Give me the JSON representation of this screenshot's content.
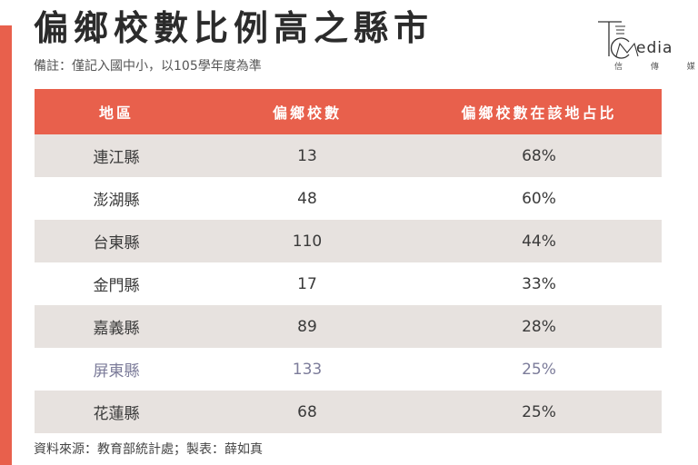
{
  "colors": {
    "accent": "#e8604c",
    "stripe": "#e7e2df",
    "text": "#333333"
  },
  "title": "偏鄉校數比例高之縣市",
  "note": "備註：僅記入國中小，以105學年度為準",
  "logo": {
    "icon": "tc-media-logo-icon",
    "word": "edia",
    "sub": "信 傳 媒"
  },
  "chart_data": {
    "type": "table",
    "title": "偏鄉校數比例高之縣市",
    "columns": [
      "地區",
      "偏鄉校數",
      "偏鄉校數在該地占比"
    ],
    "rows": [
      {
        "region": "連江縣",
        "count": "13",
        "share": "68%"
      },
      {
        "region": "澎湖縣",
        "count": "48",
        "share": "60%"
      },
      {
        "region": "台東縣",
        "count": "110",
        "share": "44%"
      },
      {
        "region": "金門縣",
        "count": "17",
        "share": "33%"
      },
      {
        "region": "嘉義縣",
        "count": "89",
        "share": "28%"
      },
      {
        "region": "屏東縣",
        "count": "133",
        "share": "25%"
      },
      {
        "region": "花蓮縣",
        "count": "68",
        "share": "25%"
      }
    ]
  },
  "source": "資料來源：教育部統計處；製表：薛如真"
}
